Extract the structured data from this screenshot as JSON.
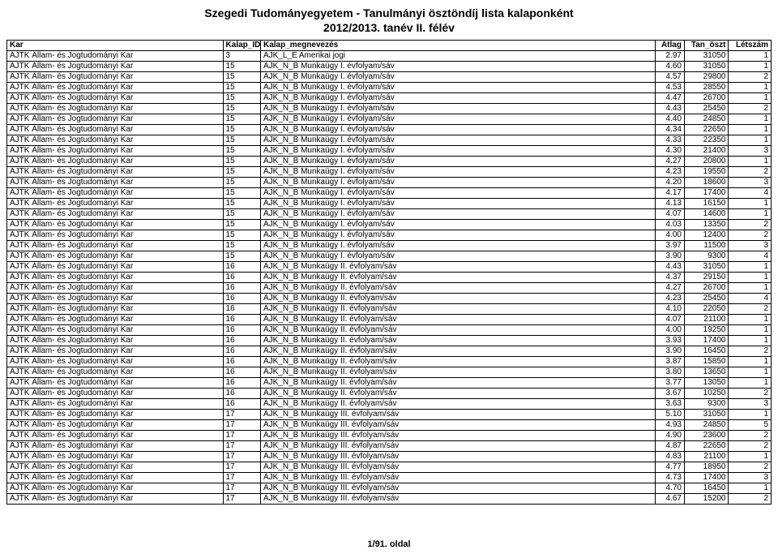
{
  "title_line1": "Szegedi Tudományegyetem - Tanulmányi ösztöndíj lista kalaponként",
  "title_line2": "2012/2013. tanév II. félév",
  "footer": "1/91. oldal",
  "columns": [
    "Kar",
    "Kalap_ID",
    "Kalap_megnevezés",
    "Átlag",
    "Tan_öszt",
    "Létszám"
  ],
  "rows": [
    [
      "ÁJTK Állam- és Jogtudományi Kar",
      "3",
      "AJK_L_E Amerikai jogi",
      "2.97",
      "31050",
      "1"
    ],
    [
      "ÁJTK Állam- és Jogtudományi Kar",
      "15",
      "AJK_N_B Munkaügy I. évfolyam/sáv",
      "4.60",
      "31050",
      "1"
    ],
    [
      "ÁJTK Állam- és Jogtudományi Kar",
      "15",
      "AJK_N_B Munkaügy I. évfolyam/sáv",
      "4.57",
      "29800",
      "2"
    ],
    [
      "ÁJTK Állam- és Jogtudományi Kar",
      "15",
      "AJK_N_B Munkaügy I. évfolyam/sáv",
      "4.53",
      "28550",
      "1"
    ],
    [
      "ÁJTK Állam- és Jogtudományi Kar",
      "15",
      "AJK_N_B Munkaügy I. évfolyam/sáv",
      "4.47",
      "26700",
      "1"
    ],
    [
      "ÁJTK Állam- és Jogtudományi Kar",
      "15",
      "AJK_N_B Munkaügy I. évfolyam/sáv",
      "4.43",
      "25450",
      "2"
    ],
    [
      "ÁJTK Állam- és Jogtudományi Kar",
      "15",
      "AJK_N_B Munkaügy I. évfolyam/sáv",
      "4.40",
      "24850",
      "1"
    ],
    [
      "ÁJTK Állam- és Jogtudományi Kar",
      "15",
      "AJK_N_B Munkaügy I. évfolyam/sáv",
      "4.34",
      "22650",
      "1"
    ],
    [
      "ÁJTK Állam- és Jogtudományi Kar",
      "15",
      "AJK_N_B Munkaügy I. évfolyam/sáv",
      "4.33",
      "22350",
      "1"
    ],
    [
      "ÁJTK Állam- és Jogtudományi Kar",
      "15",
      "AJK_N_B Munkaügy I. évfolyam/sáv",
      "4.30",
      "21400",
      "3"
    ],
    [
      "ÁJTK Állam- és Jogtudományi Kar",
      "15",
      "AJK_N_B Munkaügy I. évfolyam/sáv",
      "4.27",
      "20800",
      "1"
    ],
    [
      "ÁJTK Állam- és Jogtudományi Kar",
      "15",
      "AJK_N_B Munkaügy I. évfolyam/sáv",
      "4.23",
      "19550",
      "2"
    ],
    [
      "ÁJTK Állam- és Jogtudományi Kar",
      "15",
      "AJK_N_B Munkaügy I. évfolyam/sáv",
      "4.20",
      "18600",
      "3"
    ],
    [
      "ÁJTK Állam- és Jogtudományi Kar",
      "15",
      "AJK_N_B Munkaügy I. évfolyam/sáv",
      "4.17",
      "17400",
      "4"
    ],
    [
      "ÁJTK Állam- és Jogtudományi Kar",
      "15",
      "AJK_N_B Munkaügy I. évfolyam/sáv",
      "4.13",
      "16150",
      "1"
    ],
    [
      "ÁJTK Állam- és Jogtudományi Kar",
      "15",
      "AJK_N_B Munkaügy I. évfolyam/sáv",
      "4.07",
      "14600",
      "1"
    ],
    [
      "ÁJTK Állam- és Jogtudományi Kar",
      "15",
      "AJK_N_B Munkaügy I. évfolyam/sáv",
      "4.03",
      "13350",
      "2"
    ],
    [
      "ÁJTK Állam- és Jogtudományi Kar",
      "15",
      "AJK_N_B Munkaügy I. évfolyam/sáv",
      "4.00",
      "12400",
      "2"
    ],
    [
      "ÁJTK Állam- és Jogtudományi Kar",
      "15",
      "AJK_N_B Munkaügy I. évfolyam/sáv",
      "3.97",
      "11500",
      "3"
    ],
    [
      "ÁJTK Állam- és Jogtudományi Kar",
      "15",
      "AJK_N_B Munkaügy I. évfolyam/sáv",
      "3.90",
      "9300",
      "4"
    ],
    [
      "ÁJTK Állam- és Jogtudományi Kar",
      "16",
      "AJK_N_B Munkaügy II. évfolyam/sáv",
      "4.43",
      "31050",
      "1"
    ],
    [
      "ÁJTK Állam- és Jogtudományi Kar",
      "16",
      "AJK_N_B Munkaügy II. évfolyam/sáv",
      "4.37",
      "29150",
      "1"
    ],
    [
      "ÁJTK Állam- és Jogtudományi Kar",
      "16",
      "AJK_N_B Munkaügy II. évfolyam/sáv",
      "4.27",
      "26700",
      "1"
    ],
    [
      "ÁJTK Állam- és Jogtudományi Kar",
      "16",
      "AJK_N_B Munkaügy II. évfolyam/sáv",
      "4.23",
      "25450",
      "4"
    ],
    [
      "ÁJTK Állam- és Jogtudományi Kar",
      "16",
      "AJK_N_B Munkaügy II. évfolyam/sáv",
      "4.10",
      "22050",
      "2"
    ],
    [
      "ÁJTK Állam- és Jogtudományi Kar",
      "16",
      "AJK_N_B Munkaügy II. évfolyam/sáv",
      "4.07",
      "21100",
      "1"
    ],
    [
      "ÁJTK Állam- és Jogtudományi Kar",
      "16",
      "AJK_N_B Munkaügy II. évfolyam/sáv",
      "4.00",
      "19250",
      "1"
    ],
    [
      "ÁJTK Állam- és Jogtudományi Kar",
      "16",
      "AJK_N_B Munkaügy II. évfolyam/sáv",
      "3.93",
      "17400",
      "1"
    ],
    [
      "ÁJTK Állam- és Jogtudományi Kar",
      "16",
      "AJK_N_B Munkaügy II. évfolyam/sáv",
      "3.90",
      "16450",
      "2"
    ],
    [
      "ÁJTK Állam- és Jogtudományi Kar",
      "16",
      "AJK_N_B Munkaügy II. évfolyam/sáv",
      "3.87",
      "15850",
      "1"
    ],
    [
      "ÁJTK Állam- és Jogtudományi Kar",
      "16",
      "AJK_N_B Munkaügy II. évfolyam/sáv",
      "3.80",
      "13650",
      "1"
    ],
    [
      "ÁJTK Állam- és Jogtudományi Kar",
      "16",
      "AJK_N_B Munkaügy II. évfolyam/sáv",
      "3.77",
      "13050",
      "1"
    ],
    [
      "ÁJTK Állam- és Jogtudományi Kar",
      "16",
      "AJK_N_B Munkaügy II. évfolyam/sáv",
      "3.67",
      "10250",
      "2"
    ],
    [
      "ÁJTK Állam- és Jogtudományi Kar",
      "16",
      "AJK_N_B Munkaügy II. évfolyam/sáv",
      "3.63",
      "9300",
      "3"
    ],
    [
      "ÁJTK Állam- és Jogtudományi Kar",
      "17",
      "AJK_N_B Munkaügy III. évfolyam/sáv",
      "5.10",
      "31050",
      "1"
    ],
    [
      "ÁJTK Állam- és Jogtudományi Kar",
      "17",
      "AJK_N_B Munkaügy III. évfolyam/sáv",
      "4.93",
      "24850",
      "5"
    ],
    [
      "ÁJTK Állam- és Jogtudományi Kar",
      "17",
      "AJK_N_B Munkaügy III. évfolyam/sáv",
      "4.90",
      "23600",
      "2"
    ],
    [
      "ÁJTK Állam- és Jogtudományi Kar",
      "17",
      "AJK_N_B Munkaügy III. évfolyam/sáv",
      "4.87",
      "22650",
      "2"
    ],
    [
      "ÁJTK Állam- és Jogtudományi Kar",
      "17",
      "AJK_N_B Munkaügy III. évfolyam/sáv",
      "4.83",
      "21100",
      "1"
    ],
    [
      "ÁJTK Állam- és Jogtudományi Kar",
      "17",
      "AJK_N_B Munkaügy III. évfolyam/sáv",
      "4.77",
      "18950",
      "2"
    ],
    [
      "ÁJTK Állam- és Jogtudományi Kar",
      "17",
      "AJK_N_B Munkaügy III. évfolyam/sáv",
      "4.73",
      "17400",
      "3"
    ],
    [
      "ÁJTK Állam- és Jogtudományi Kar",
      "17",
      "AJK_N_B Munkaügy III. évfolyam/sáv",
      "4.70",
      "16450",
      "1"
    ],
    [
      "ÁJTK Állam- és Jogtudományi Kar",
      "17",
      "AJK_N_B Munkaügy III. évfolyam/sáv",
      "4.67",
      "15200",
      "2"
    ]
  ]
}
